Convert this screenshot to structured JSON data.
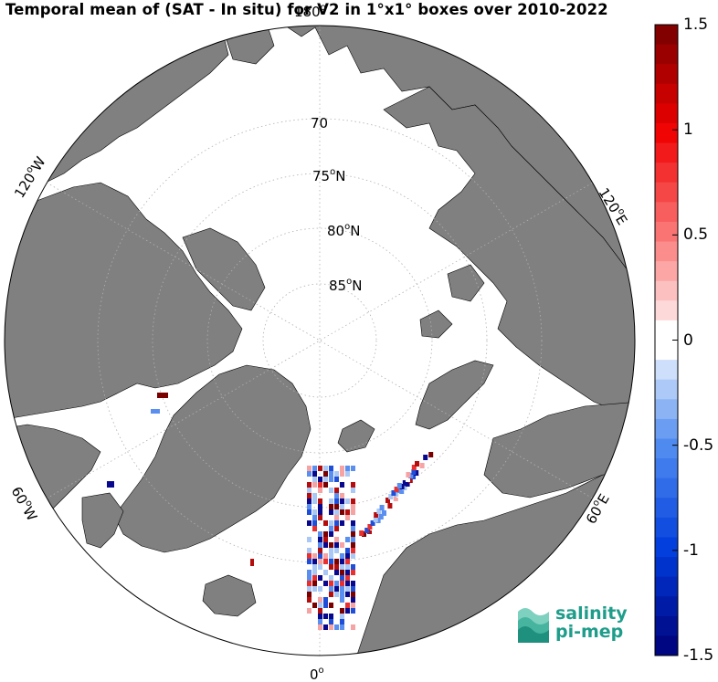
{
  "title": "Temporal mean of (SAT - In situ) for V2 in 1°x1° boxes over 2010-2022",
  "map": {
    "projection": "north polar stereographic",
    "lat_labels": [
      "70",
      "75",
      "80",
      "85"
    ],
    "lat_label_suffix": "N",
    "lon_labels": {
      "top": "180",
      "left_upper": "120",
      "left_upper_dir": "W",
      "left_lower": "60",
      "left_lower_dir": "W",
      "right_upper": "120",
      "right_upper_dir": "E",
      "right_lower": "60",
      "right_lower_dir": "E",
      "bottom": "0"
    },
    "land_color": "#808080",
    "ocean_color": "#ffffff",
    "grid": "dotted"
  },
  "colorbar": {
    "min": -1.5,
    "max": 1.5,
    "ticks": [
      "1.5",
      "1",
      "0.5",
      "0",
      "-0.5",
      "-1",
      "-1.5"
    ],
    "colormap": "blue-white-red (diverging)",
    "colors": {
      "max": "#7a0000",
      "mid": "#ffffff",
      "min": "#00008b"
    }
  },
  "logo": {
    "line1": "salinity",
    "line2": "pi-mep",
    "color": "#1f9d8b"
  }
}
